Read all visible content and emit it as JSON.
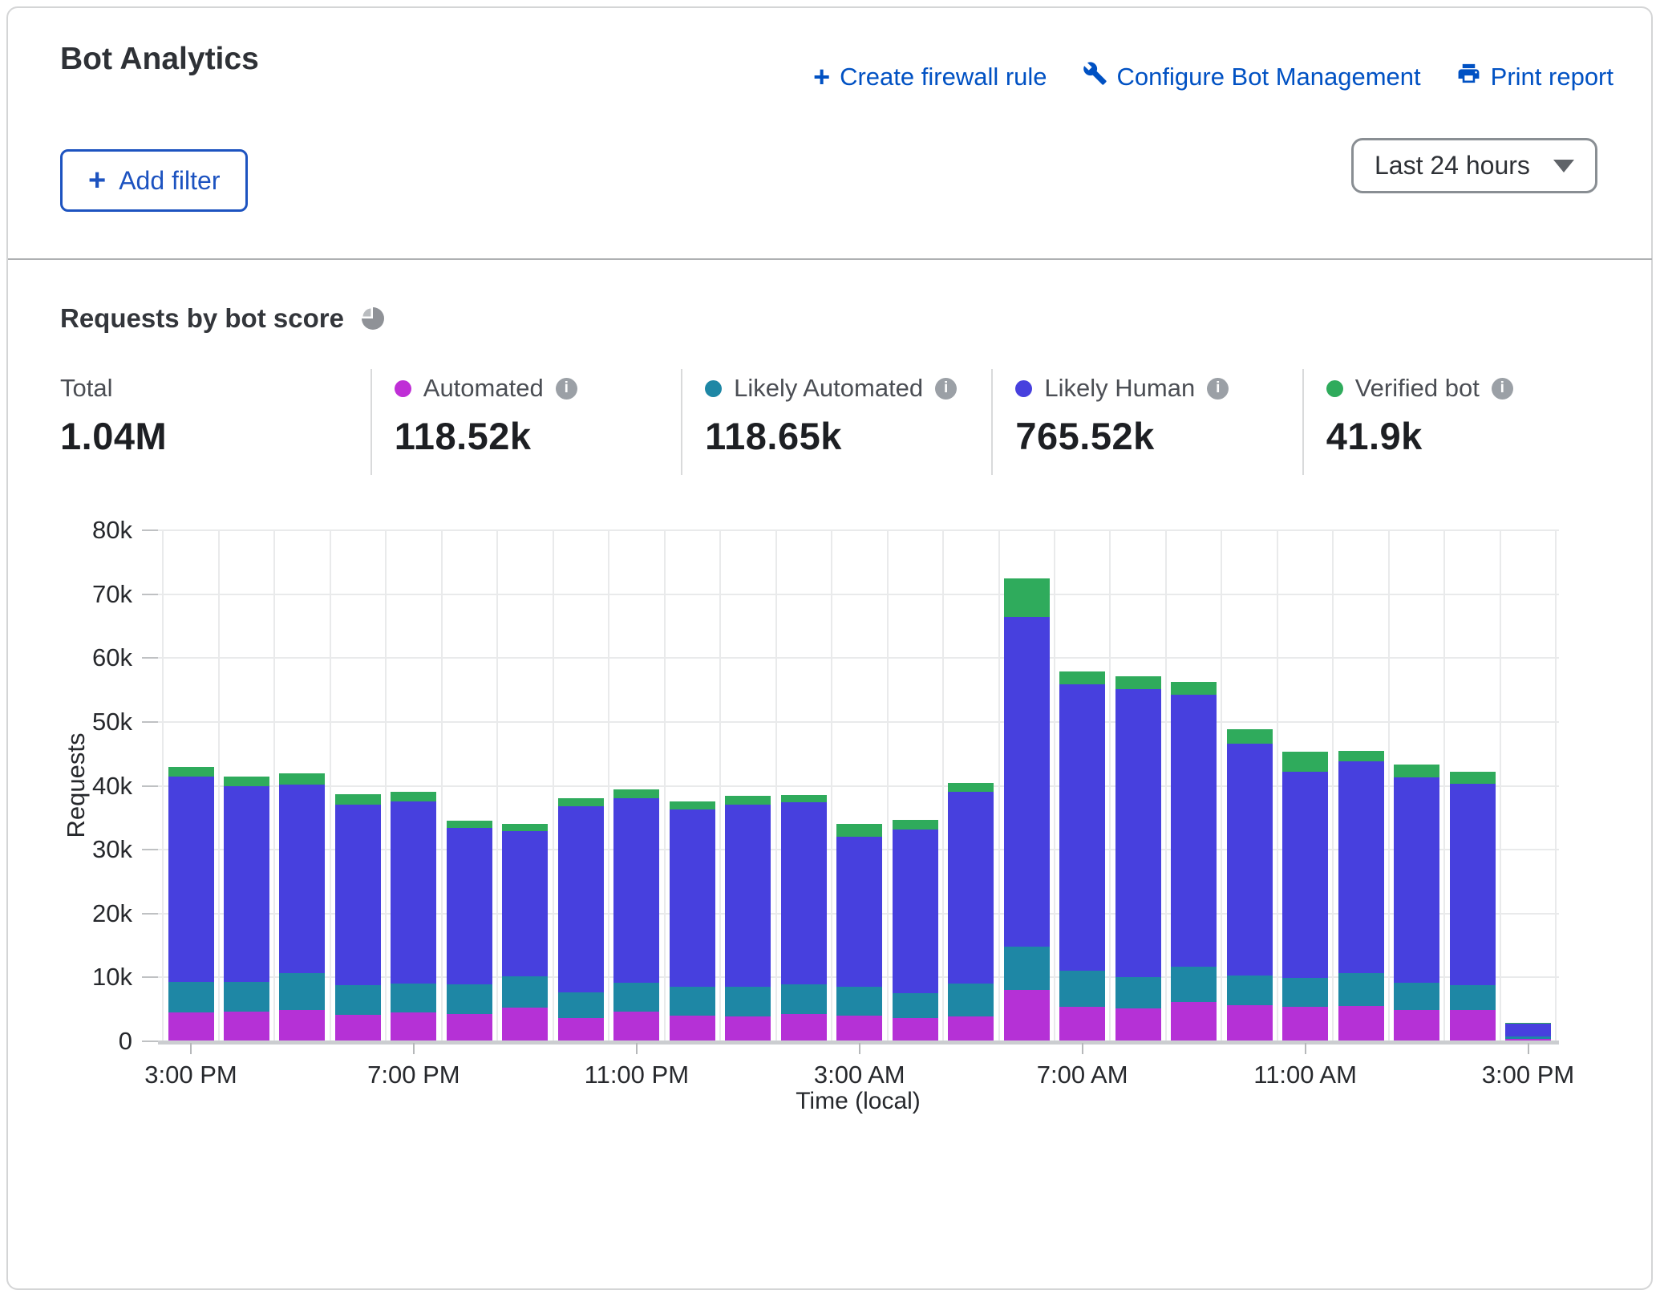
{
  "header": {
    "title": "Bot Analytics",
    "actions": [
      {
        "icon": "plus-icon",
        "label": "Create firewall rule"
      },
      {
        "icon": "wrench-icon",
        "label": "Configure Bot Management"
      },
      {
        "icon": "printer-icon",
        "label": "Print report"
      }
    ],
    "add_filter_label": "Add filter",
    "time_range_value": "Last 24 hours"
  },
  "section": {
    "title": "Requests by bot score"
  },
  "stats": {
    "total_label": "Total",
    "total_value": "1.04M",
    "series": [
      {
        "label": "Automated",
        "value": "118.52k",
        "color": "#bf2fd6"
      },
      {
        "label": "Likely Automated",
        "value": "118.65k",
        "color": "#1e87a5"
      },
      {
        "label": "Likely Human",
        "value": "765.52k",
        "color": "#4740de"
      },
      {
        "label": "Verified bot",
        "value": "41.9k",
        "color": "#2fab5c"
      }
    ]
  },
  "chart_data": {
    "type": "bar",
    "stacked": true,
    "title": "Requests by bot score",
    "xlabel": "Time (local)",
    "ylabel": "Requests",
    "ylim": [
      0,
      80000
    ],
    "grid": true,
    "legend_position": "stats-row",
    "ytick_labels": [
      "0",
      "10k",
      "20k",
      "30k",
      "40k",
      "50k",
      "60k",
      "70k",
      "80k"
    ],
    "xtick_labels": [
      "3:00 PM",
      "7:00 PM",
      "11:00 PM",
      "3:00 AM",
      "7:00 AM",
      "11:00 AM",
      "3:00 PM"
    ],
    "xtick_interval": 4,
    "categories": [
      "3:00 PM",
      "4:00 PM",
      "5:00 PM",
      "6:00 PM",
      "7:00 PM",
      "8:00 PM",
      "9:00 PM",
      "10:00 PM",
      "11:00 PM",
      "12:00 AM",
      "1:00 AM",
      "2:00 AM",
      "3:00 AM",
      "4:00 AM",
      "5:00 AM",
      "6:00 AM",
      "7:00 AM",
      "8:00 AM",
      "9:00 AM",
      "10:00 AM",
      "11:00 AM",
      "12:00 PM",
      "1:00 PM",
      "2:00 PM",
      "3:00 PM"
    ],
    "series": [
      {
        "name": "Automated",
        "color": "#b531d6",
        "values": [
          4500,
          4600,
          4900,
          4200,
          4500,
          4300,
          5300,
          3700,
          4700,
          4000,
          3900,
          4300,
          4000,
          3700,
          3900,
          8100,
          5400,
          5100,
          6200,
          5600,
          5400,
          5500,
          4900,
          4900,
          400
        ]
      },
      {
        "name": "Likely Automated",
        "color": "#1e87a5",
        "values": [
          4800,
          4700,
          5800,
          4600,
          4600,
          4600,
          4900,
          4000,
          4500,
          4600,
          4600,
          4600,
          4600,
          3900,
          5200,
          6700,
          5700,
          4900,
          5500,
          4700,
          4500,
          5200,
          4300,
          3900,
          400
        ]
      },
      {
        "name": "Likely Human",
        "color": "#4740de",
        "values": [
          32200,
          30600,
          29500,
          28300,
          28400,
          24500,
          22700,
          29100,
          28900,
          27700,
          28600,
          28500,
          23400,
          25600,
          30000,
          51700,
          44800,
          45200,
          42600,
          36300,
          32300,
          33100,
          32100,
          31500,
          2000
        ]
      },
      {
        "name": "Verified bot",
        "color": "#2fab5c",
        "values": [
          1400,
          1600,
          1700,
          1600,
          1500,
          1200,
          1100,
          1300,
          1300,
          1200,
          1300,
          1100,
          2000,
          1500,
          1300,
          6000,
          2000,
          2000,
          2000,
          2200,
          3100,
          1700,
          2000,
          1900,
          100
        ]
      }
    ]
  }
}
